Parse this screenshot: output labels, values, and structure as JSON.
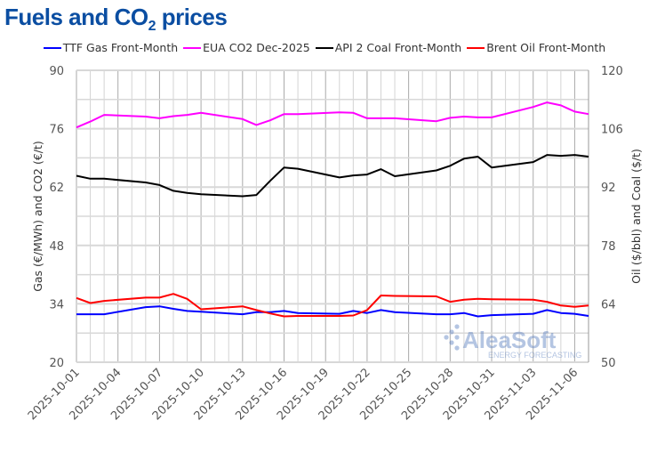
{
  "title": {
    "main": "Fuels and CO",
    "sub": "2",
    "suffix": " prices",
    "color": "#0B4EA2"
  },
  "watermark": {
    "brand": "AleaSoft",
    "tagline": "ENERGY FORECASTING"
  },
  "chart_data": {
    "type": "line",
    "title": "Fuels and CO2 prices",
    "ylabel": "Gas (€/MWh) and CO2 (€/t)",
    "y2label": "Oil ($/bbl) and Coal ($/t)",
    "ylim": [
      20,
      90
    ],
    "y2lim": [
      50,
      120
    ],
    "yticks": [
      20,
      34,
      48,
      62,
      76,
      90
    ],
    "y2ticks": [
      50,
      64,
      78,
      92,
      106,
      120
    ],
    "xlim": [
      "2025-10-01",
      "2025-11-07"
    ],
    "xticks": [
      "2025-10-01",
      "2025-10-04",
      "2025-10-07",
      "2025-10-10",
      "2025-10-13",
      "2025-10-16",
      "2025-10-19",
      "2025-10-22",
      "2025-10-25",
      "2025-10-28",
      "2025-10-31",
      "2025-11-03",
      "2025-11-06"
    ],
    "grid": true,
    "legend_position": "top",
    "x": [
      "2025-10-01",
      "2025-10-02",
      "2025-10-03",
      "2025-10-06",
      "2025-10-07",
      "2025-10-08",
      "2025-10-09",
      "2025-10-10",
      "2025-10-13",
      "2025-10-14",
      "2025-10-15",
      "2025-10-16",
      "2025-10-17",
      "2025-10-20",
      "2025-10-21",
      "2025-10-22",
      "2025-10-23",
      "2025-10-24",
      "2025-10-27",
      "2025-10-28",
      "2025-10-29",
      "2025-10-30",
      "2025-10-31",
      "2025-11-03",
      "2025-11-04",
      "2025-11-05",
      "2025-11-06",
      "2025-11-07"
    ],
    "series": [
      {
        "name": "TTF Gas Front-Month",
        "axis": "left",
        "color": "#0000FF",
        "values": [
          31.5,
          31.5,
          31.5,
          33.2,
          33.4,
          32.8,
          32.3,
          32.1,
          31.5,
          32.0,
          32.0,
          32.3,
          31.8,
          31.6,
          32.3,
          31.8,
          32.5,
          32.0,
          31.5,
          31.5,
          31.8,
          31.0,
          31.3,
          31.6,
          32.5,
          31.8,
          31.6,
          31.1
        ]
      },
      {
        "name": "EUA CO2 Dec-2025",
        "axis": "left",
        "color": "#FF00FF",
        "values": [
          76.3,
          77.7,
          79.3,
          78.9,
          78.5,
          79.0,
          79.3,
          79.8,
          78.3,
          76.9,
          78.0,
          79.5,
          79.5,
          79.9,
          79.8,
          78.5,
          78.5,
          78.5,
          77.8,
          78.6,
          78.9,
          78.7,
          78.7,
          81.2,
          82.3,
          81.6,
          80.1,
          79.5
        ]
      },
      {
        "name": "API 2 Coal Front-Month",
        "axis": "right",
        "color": "#000000",
        "values": [
          94.7,
          94.0,
          94.0,
          93.1,
          92.5,
          91.1,
          90.6,
          90.3,
          89.8,
          90.1,
          93.5,
          96.7,
          96.4,
          94.3,
          94.8,
          95.0,
          96.3,
          94.6,
          96.0,
          97.1,
          98.8,
          99.3,
          96.7,
          98.0,
          99.7,
          99.5,
          99.7,
          99.3
        ]
      },
      {
        "name": "Brent Oil Front-Month",
        "axis": "right",
        "color": "#FF0000",
        "values": [
          65.4,
          64.2,
          64.7,
          65.5,
          65.5,
          66.4,
          65.2,
          62.7,
          63.4,
          62.5,
          61.7,
          61.0,
          61.1,
          61.1,
          61.2,
          62.5,
          66.0,
          65.9,
          65.8,
          64.5,
          65.0,
          65.2,
          65.1,
          65.0,
          64.5,
          63.6,
          63.3,
          63.6
        ]
      }
    ]
  }
}
